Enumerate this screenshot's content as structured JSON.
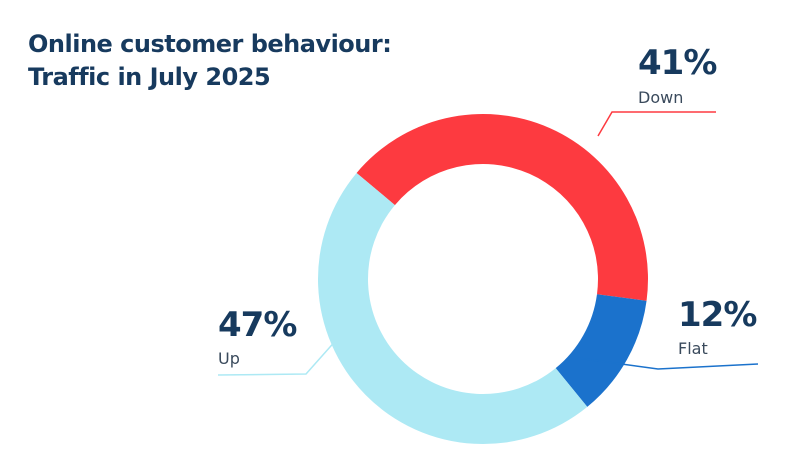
{
  "chart_data": {
    "type": "pie",
    "title": "Online customer behaviour:",
    "subtitle": "Traffic in July 2025",
    "categories": [
      "Down",
      "Flat",
      "Up"
    ],
    "values": [
      41,
      12,
      47
    ],
    "value_labels": [
      "41%",
      "12%",
      "47%"
    ],
    "colors": [
      "#fd3a40",
      "#1b72cc",
      "#ade9f4"
    ],
    "text_color": "#173a5e",
    "label_color": "#3a4a5c",
    "donut": true
  }
}
